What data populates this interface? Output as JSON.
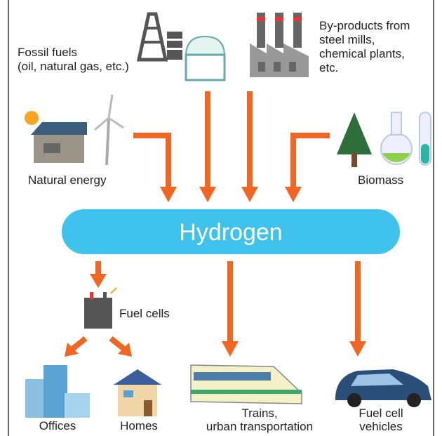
{
  "sources": {
    "fossil": {
      "lines": [
        "Fossil fuels",
        "(oil, natural gas, etc.)"
      ]
    },
    "byproducts": {
      "lines": [
        "By-products from",
        "steel mills,",
        "chemical plants,",
        "etc."
      ]
    },
    "natural": {
      "label": "Natural energy"
    },
    "biomass": {
      "label": "Biomass"
    }
  },
  "center": {
    "label": "Hydrogen"
  },
  "fuel_cells": {
    "label": "Fuel cells"
  },
  "uses": {
    "offices": {
      "label": "Offices"
    },
    "homes": {
      "label": "Homes"
    },
    "trains": {
      "lines": [
        "Trains,",
        "urban transportation"
      ]
    },
    "vehicles": {
      "lines": [
        "Fuel cell",
        "vehicles"
      ]
    }
  }
}
